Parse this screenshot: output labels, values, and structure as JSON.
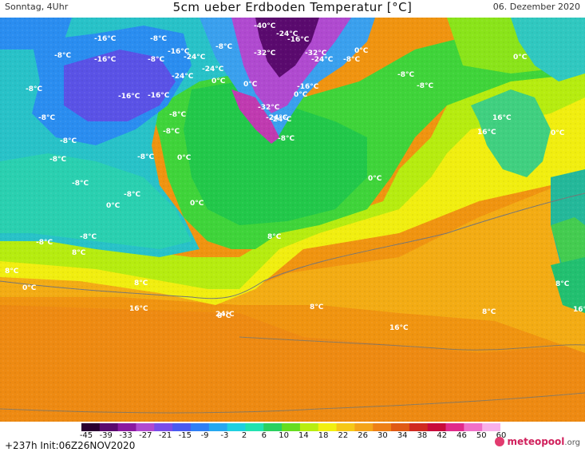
{
  "header": {
    "left": "Sonntag, 4Uhr",
    "title": "5cm ueber Erdboden Temperatur [°C]",
    "date": "06. Dezember 2020"
  },
  "footer": {
    "init": "+237h  Init:06Z26NOV2020",
    "brand": "meteopool",
    "brand_suffix": ".org"
  },
  "scale": {
    "labels": [
      "-45",
      "-39",
      "-33",
      "-27",
      "-21",
      "-15",
      "-9",
      "-3",
      "2",
      "6",
      "10",
      "14",
      "18",
      "22",
      "26",
      "30",
      "34",
      "38",
      "42",
      "46",
      "50",
      "60"
    ],
    "colors": [
      "#2a0030",
      "#5a0a6e",
      "#8a1aa0",
      "#b04ad0",
      "#7a4ee8",
      "#4a5af0",
      "#2f7ff5",
      "#25a8f0",
      "#1fd0e0",
      "#22e2b0",
      "#2ad060",
      "#66dd20",
      "#b8ee10",
      "#f2f010",
      "#f6c818",
      "#f4a41a",
      "#ee8016",
      "#e05a14",
      "#d02a20",
      "#c80a3a",
      "#e02a8a",
      "#f070c8",
      "#f8b0ea"
    ]
  },
  "map_labels": [
    "-16°C",
    "-8°C",
    "-16°C",
    "-8°C",
    "-16°C",
    "-8°C",
    "-24°C",
    "-8°C",
    "-40°C",
    "-24°C",
    "-16°C",
    "-8°C",
    "-8°C",
    "-8°C",
    "-8°C",
    "-8°C",
    "-24°C",
    "-24°C",
    "-32°C",
    "-32°C",
    "-24°C",
    "-8°C",
    "0°C",
    "-8°C",
    "-8°C",
    "0°C",
    "0°C",
    "-16°C",
    "-16°C",
    "-24°C",
    "-16°C",
    "-32°C",
    "-24°C",
    "-8°C",
    "0°C",
    "-8°C",
    "-8°C",
    "-8°C",
    "-8°C",
    "-8°C",
    "-8°C",
    "0°C",
    "0°C",
    "0°C",
    "8°C",
    "8°C",
    "8°C",
    "0°C",
    "0°C",
    "8°C",
    "8°C",
    "8°C",
    "16°C",
    "16°C",
    "8°C",
    "16°C",
    "16°C",
    "16°C",
    "16°C",
    "24°C",
    "0°C",
    "0°C",
    "8°C"
  ]
}
